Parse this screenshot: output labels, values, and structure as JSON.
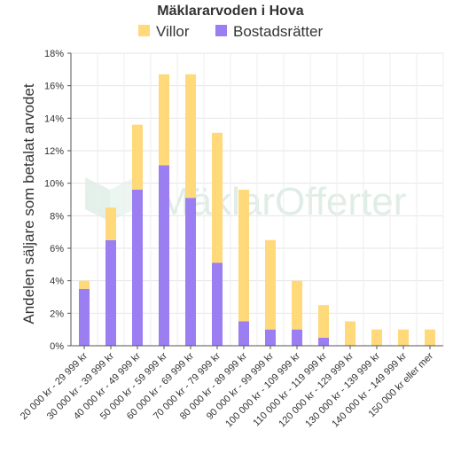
{
  "chart_data": {
    "type": "bar",
    "stacked": true,
    "title": "Mäklararvoden i Hova",
    "ylabel": "Andelen säljare som betalat arvodet",
    "xlabel": "",
    "ylim": [
      0,
      18
    ],
    "yticks": [
      "0%",
      "2%",
      "4%",
      "6%",
      "8%",
      "10%",
      "12%",
      "14%",
      "16%",
      "18%"
    ],
    "grid": true,
    "legend_position": "top",
    "watermark": "MäklarOfferter",
    "categories": [
      "20 000 kr - 29 999 kr",
      "30 000 kr - 39 999 kr",
      "40 000 kr - 49 999 kr",
      "50 000 kr - 59 999 kr",
      "60 000 kr - 69 999 kr",
      "70 000 kr - 79 999 kr",
      "80 000 kr - 89 999 kr",
      "90 000 kr - 99 999 kr",
      "100 000 kr - 109 999 kr",
      "110 000 kr - 119 999 kr",
      "120 000 kr - 129 999 kr",
      "130 000 kr - 139 999 kr",
      "140 000 kr - 149 999 kr",
      "150 000 kr eller mer"
    ],
    "series": [
      {
        "name": "Bostadsrätter",
        "color": "#9a7ef2",
        "values": [
          3.5,
          6.5,
          9.6,
          11.1,
          9.1,
          5.1,
          1.5,
          1.0,
          1.0,
          0.5,
          0,
          0,
          0,
          0
        ]
      },
      {
        "name": "Villor",
        "color": "#ffd97a",
        "values": [
          0.5,
          2.0,
          4.0,
          5.6,
          7.6,
          8.0,
          8.1,
          5.5,
          3.0,
          2.0,
          1.5,
          1.0,
          1.0,
          1.0
        ]
      }
    ],
    "legend_order": [
      "Villor",
      "Bostadsrätter"
    ]
  }
}
